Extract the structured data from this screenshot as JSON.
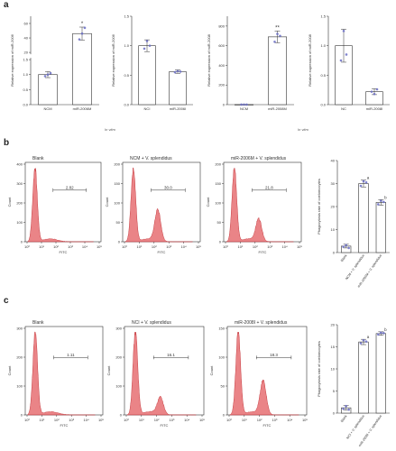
{
  "panels": {
    "a": "a",
    "b": "b",
    "c": "c"
  },
  "footnotes": {
    "left": "In vitro",
    "right": "In vitro"
  },
  "colors": {
    "fill": "#e8777b",
    "stroke": "#c0292e",
    "dot": "#6b6fc6",
    "bar_edge": "#333333",
    "sig": "#c0292e"
  },
  "chart_data": [
    {
      "id": "a1",
      "type": "bar",
      "ylabel": "Relative expression of miR-2006",
      "categories": [
        "NCM",
        "miR-2006M"
      ],
      "values": [
        1.0,
        46.0
      ],
      "errors": [
        0.1,
        9.0
      ],
      "points": [
        [
          0.95,
          1.0,
          1.05
        ],
        [
          38,
          46,
          54
        ]
      ],
      "y_ticks": [
        "1.5",
        "1.0",
        "0.5",
        "0.0",
        "60",
        "40",
        "20"
      ],
      "broken_axis": true,
      "sig": "*"
    },
    {
      "id": "a2",
      "type": "bar",
      "ylabel": "Relative expression of miR-2006",
      "categories": [
        "NCI",
        "miR-2006I"
      ],
      "values": [
        1.0,
        0.56
      ],
      "errors": [
        0.1,
        0.03
      ],
      "points": [
        [
          0.95,
          1.08,
          1.0
        ],
        [
          0.55,
          0.57,
          0.56
        ]
      ],
      "ylim": [
        0,
        1.5
      ],
      "y_ticks": [
        "0.0",
        "0.5",
        "1.0",
        "1.5"
      ],
      "sig": ""
    },
    {
      "id": "a3",
      "type": "bar",
      "ylabel": "Relative expression of miR-2008",
      "categories": [
        "NCM",
        "miR-2008M"
      ],
      "values": [
        1.0,
        690
      ],
      "errors": [
        0.1,
        60
      ],
      "points": [
        [
          0.9,
          1.1,
          1.0
        ],
        [
          640,
          720,
          700
        ]
      ],
      "ylim": [
        0,
        900
      ],
      "y_ticks": [
        "0",
        "200",
        "400",
        "600",
        "800"
      ],
      "sig": "**"
    },
    {
      "id": "a4",
      "type": "bar",
      "ylabel": "Relative expression of miR-2008",
      "categories": [
        "NC",
        "miR-2008I"
      ],
      "values": [
        1.0,
        0.22
      ],
      "errors": [
        0.28,
        0.05
      ],
      "points": [
        [
          0.75,
          1.25,
          0.85
        ],
        [
          0.22,
          0.18,
          0.26
        ]
      ],
      "ylim": [
        0,
        1.5
      ],
      "y_ticks": [
        "0.0",
        "0.5",
        "1.0",
        "1.5"
      ],
      "sig": ""
    },
    {
      "id": "b1",
      "type": "area",
      "title": "Blank",
      "xlabel": "FITC",
      "ylabel": "Count",
      "y_ticks": [
        "0",
        "100",
        "200",
        "300",
        "400"
      ],
      "x_ticks": [
        "10⁰",
        "10¹",
        "10²",
        "10³",
        "10⁴",
        "10⁵"
      ],
      "gate_label": "2.82",
      "peak_log": 0.55,
      "peak2": 0
    },
    {
      "id": "b2",
      "type": "area",
      "title": "NCM + V. splendidus",
      "xlabel": "FITC",
      "ylabel": "Count",
      "y_ticks": [
        "0",
        "50",
        "100",
        "150",
        "200"
      ],
      "x_ticks": [
        "10⁰",
        "10¹",
        "10²",
        "10³",
        "10⁴",
        "10⁵"
      ],
      "gate_label": "30.0",
      "peak_log": 0.6,
      "peak2": 0.42
    },
    {
      "id": "b3",
      "type": "area",
      "title": "miR-2006M + V. splendidus",
      "xlabel": "FITC",
      "ylabel": "Count",
      "y_ticks": [
        "0",
        "50",
        "100",
        "150",
        "200"
      ],
      "x_ticks": [
        "10⁰",
        "10¹",
        "10²",
        "10³",
        "10⁴",
        "10⁵"
      ],
      "gate_label": "21.8",
      "peak_log": 0.6,
      "peak2": 0.3
    },
    {
      "id": "b4",
      "type": "bar",
      "ylabel": "Phagocytosis rate of coelomocytes",
      "categories": [
        "Blank",
        "NCM + V. splendidus",
        "miR-2006M + V. splendidus"
      ],
      "values": [
        2.8,
        30.0,
        21.8
      ],
      "errors": [
        0.8,
        1.5,
        1.2
      ],
      "points": [
        [
          2.5,
          3.2,
          2.0
        ],
        [
          29,
          31,
          30.5
        ],
        [
          21,
          22.5,
          22
        ]
      ],
      "ylim": [
        0,
        40
      ],
      "y_ticks": [
        "0",
        "10",
        "20",
        "30",
        "40"
      ],
      "sig_marks": [
        "",
        "a",
        "b"
      ]
    },
    {
      "id": "c1",
      "type": "area",
      "title": "Blank",
      "xlabel": "FITC",
      "ylabel": "Count",
      "y_ticks": [
        "0",
        "100",
        "200",
        "300"
      ],
      "x_ticks": [
        "10⁰",
        "10¹",
        "10²",
        "10³",
        "10⁴",
        "10⁵"
      ],
      "gate_label": "1.11",
      "peak_log": 0.55,
      "peak2": 0
    },
    {
      "id": "c2",
      "type": "area",
      "title": "NCI + V. splendidus",
      "xlabel": "FITC",
      "ylabel": "Count",
      "y_ticks": [
        "0",
        "100",
        "200",
        "300"
      ],
      "x_ticks": [
        "10⁰",
        "10¹",
        "10²",
        "10³",
        "10⁴",
        "10⁵"
      ],
      "gate_label": "16.1",
      "peak_log": 0.6,
      "peak2": 0.2
    },
    {
      "id": "c3",
      "type": "area",
      "title": "miR-2008I + V. splendidus",
      "xlabel": "FITC",
      "ylabel": "Count",
      "y_ticks": [
        "0",
        "50",
        "100",
        "150"
      ],
      "x_ticks": [
        "10⁰",
        "10¹",
        "10²",
        "10³",
        "10⁴",
        "10⁵"
      ],
      "gate_label": "18.3",
      "peak_log": 0.6,
      "peak2": 0.4
    },
    {
      "id": "c4",
      "type": "bar",
      "ylabel": "Phagocytosis rate of coelomocytes",
      "categories": [
        "Blank",
        "NCI + V. splendidus",
        "miR-2008I + V. splendidus"
      ],
      "values": [
        1.2,
        16.1,
        18.0
      ],
      "errors": [
        0.5,
        0.6,
        0.4
      ],
      "points": [
        [
          1.0,
          1.6,
          0.8
        ],
        [
          15.8,
          16.5,
          16.2
        ],
        [
          17.8,
          18.2,
          18.1
        ]
      ],
      "ylim": [
        0,
        20
      ],
      "y_ticks": [
        "0",
        "5",
        "10",
        "15",
        "20"
      ],
      "sig_marks": [
        "",
        "a",
        "b"
      ]
    }
  ]
}
